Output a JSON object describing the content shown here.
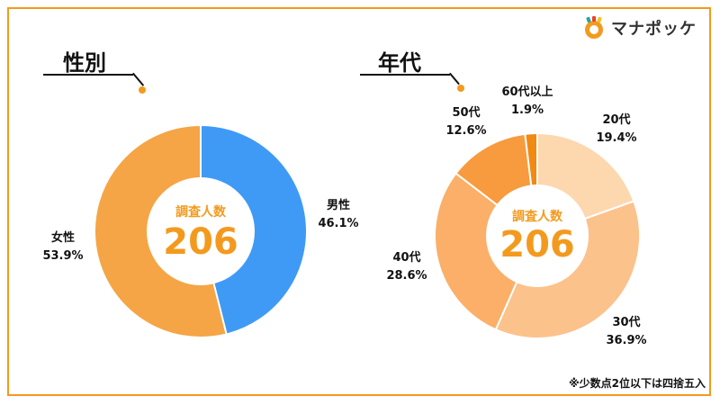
{
  "brand": {
    "name": "マナポッケ",
    "accent": "#f39a1e"
  },
  "footnote": "※少数点2位以下は四捨五入",
  "chart_data": [
    {
      "type": "pie",
      "title": "性別",
      "center_label": "調査人数",
      "center_value": "206",
      "slices": [
        {
          "label": "男性",
          "value": 46.1,
          "value_text": "46.1%",
          "color": "#3f9af5"
        },
        {
          "label": "女性",
          "value": 53.9,
          "value_text": "53.9%",
          "color": "#f5a545"
        }
      ]
    },
    {
      "type": "pie",
      "title": "年代",
      "center_label": "調査人数",
      "center_value": "206",
      "slices": [
        {
          "label": "20代",
          "value": 19.4,
          "value_text": "19.4%",
          "color": "#fdd7ae"
        },
        {
          "label": "30代",
          "value": 36.9,
          "value_text": "36.9%",
          "color": "#fcc28b"
        },
        {
          "label": "40代",
          "value": 28.6,
          "value_text": "28.6%",
          "color": "#fbaf68"
        },
        {
          "label": "50代",
          "value": 12.6,
          "value_text": "12.6%",
          "color": "#f79b3e"
        },
        {
          "label": "60代以上",
          "value": 1.9,
          "value_text": "1.9%",
          "color": "#f08a12"
        }
      ]
    }
  ]
}
